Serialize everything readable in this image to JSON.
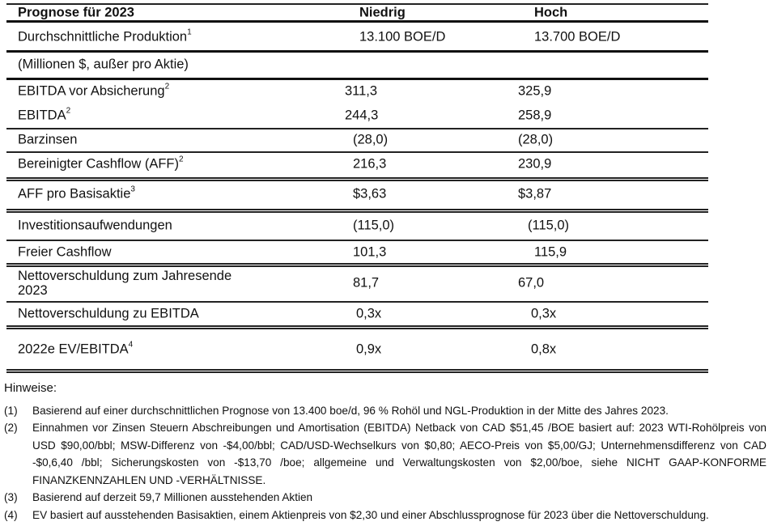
{
  "table": {
    "header": {
      "label": "Prognose für 2023",
      "low": "Niedrig",
      "high": "Hoch"
    },
    "rows": [
      {
        "label": "Durchschnittliche Produktion",
        "sup": "1",
        "low": "13.100 BOE/D",
        "high": "13.700 BOE/D"
      },
      {
        "label": "(Millionen $, außer pro Aktie)",
        "sup": "",
        "low": "",
        "high": ""
      },
      {
        "label": "EBITDA vor Absicherung",
        "sup": "2",
        "low": "311,3",
        "high": "325,9"
      },
      {
        "label": "EBITDA",
        "sup": "2",
        "low": "244,3",
        "high": "258,9"
      },
      {
        "label": "Barzinsen",
        "sup": "",
        "low": "(28,0)",
        "high": "(28,0)"
      },
      {
        "label": "Bereinigter Cashflow (AFF)",
        "sup": "2",
        "low": "216,3",
        "high": "230,9"
      },
      {
        "label": "AFF pro Basisaktie",
        "sup": "3",
        "low": "$3,63",
        "high": "$3,87"
      },
      {
        "label": "Investitionsaufwendungen",
        "sup": "",
        "low": "(115,0)",
        "high": "(115,0)"
      },
      {
        "label": "Freier Cashflow",
        "sup": "",
        "low": "101,3",
        "high": "115,9"
      },
      {
        "label": "Nettoverschuldung zum Jahresende",
        "label2": "2023",
        "sup": "",
        "low": "81,7",
        "high": "67,0"
      },
      {
        "label": "Nettoverschuldung zu EBITDA",
        "sup": "",
        "low": "0,3x",
        "high": "0,3x"
      },
      {
        "label": "2022e EV/EBITDA",
        "sup": "4",
        "low": "0,9x",
        "high": "0,8x"
      }
    ]
  },
  "notes": {
    "title": "Hinweise:",
    "items": [
      {
        "num": "(1)",
        "text": "Basierend auf einer durchschnittlichen Prognose von 13.400 boe/d, 96 % Rohöl und NGL-Produktion in der Mitte des Jahres 2023."
      },
      {
        "num": "(2)",
        "text": "Einnahmen vor Zinsen Steuern Abschreibungen und Amortisation (EBITDA) Netback von CAD $51,45 /BOE basiert auf: 2023 WTI-Rohölpreis von USD $90,00/bbl; MSW-Differenz von -$4,00/bbl; CAD/USD-Wechselkurs von $0,80; AECO-Preis von $5,00/GJ; Unternehmensdifferenz von CAD -$0,6,40 /bbl; Sicherungskosten von -$13,70 /boe; allgemeine und Verwaltungskosten von $2,00/boe, siehe NICHT GAAP-KONFORME FINANZKENNZAHLEN UND -VERHÄLTNISSE."
      },
      {
        "num": "(3)",
        "text": "Basierend auf derzeit 59,7 Millionen ausstehenden Aktien"
      },
      {
        "num": "(4)",
        "text": "EV basiert auf ausstehenden Basisaktien, einem Aktienpreis von $2,30 und einer Abschlussprognose für 2023 über die Nettoverschuldung."
      }
    ]
  }
}
